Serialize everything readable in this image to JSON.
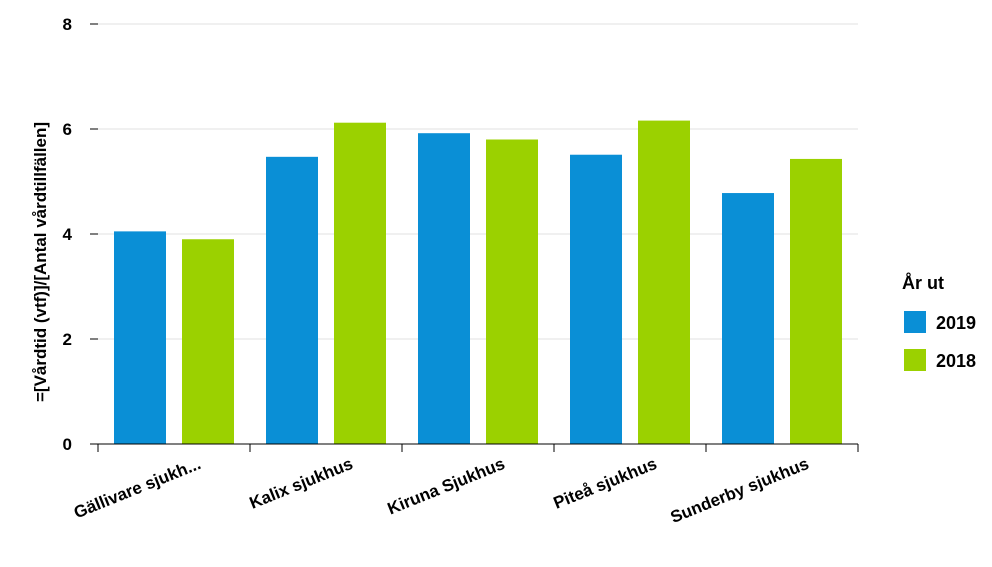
{
  "chart_data": {
    "type": "bar",
    "ylabel": "=[Vårdtid (vtf)]/[Antal vårdtillfällen]",
    "xlabel": "",
    "categories": [
      "Gällivare sjukh...",
      "Kalix sjukhus",
      "Kiruna Sjukhus",
      "Piteå sjukhus",
      "Sunderby sjukhus"
    ],
    "ylim": [
      0,
      8
    ],
    "yticks": [
      0,
      2,
      4,
      6,
      8
    ],
    "grid": true,
    "legend": {
      "title": "År ut",
      "placement": "right"
    },
    "series": [
      {
        "name": "2019",
        "color": "#0a8fd6",
        "values": [
          4.05,
          5.47,
          5.92,
          5.51,
          4.78
        ]
      },
      {
        "name": "2018",
        "color": "#9bd100",
        "values": [
          3.9,
          6.12,
          5.8,
          6.16,
          5.43
        ]
      }
    ]
  }
}
